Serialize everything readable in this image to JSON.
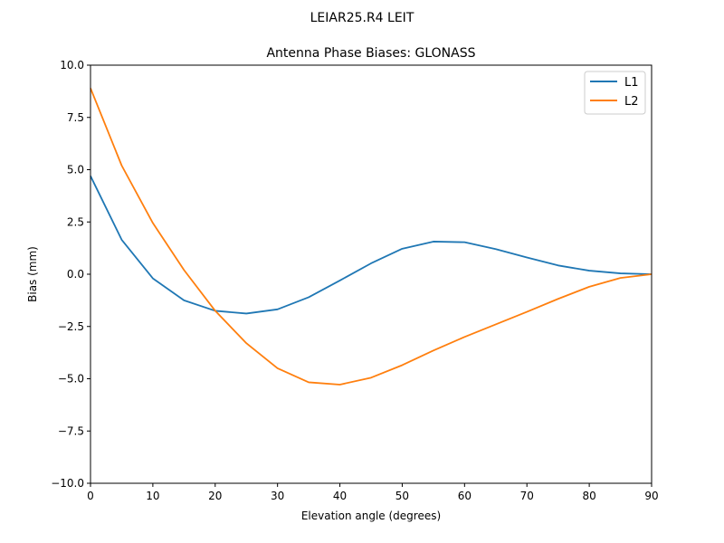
{
  "figure": {
    "suptitle": "LEIAR25.R4       LEIT"
  },
  "chart_data": {
    "type": "line",
    "title": "Antenna Phase Biases: GLONASS",
    "xlabel": "Elevation angle (degrees)",
    "ylabel": "Bias (mm)",
    "xlim": [
      0,
      90
    ],
    "ylim": [
      -10,
      10
    ],
    "xticks": [
      0,
      10,
      20,
      30,
      40,
      50,
      60,
      70,
      80,
      90
    ],
    "yticks": [
      -10.0,
      -7.5,
      -5.0,
      -2.5,
      0.0,
      2.5,
      5.0,
      7.5,
      10.0
    ],
    "ytick_labels": [
      "−10.0",
      "−7.5",
      "−5.0",
      "−2.5",
      "0.0",
      "2.5",
      "5.0",
      "7.5",
      "10.0"
    ],
    "grid": false,
    "legend_position": "top-right",
    "x": [
      0,
      5,
      10,
      15,
      20,
      25,
      30,
      35,
      40,
      45,
      50,
      55,
      60,
      65,
      70,
      75,
      80,
      85,
      90
    ],
    "series": [
      {
        "name": "L1",
        "color": "#1f77b4",
        "values": [
          4.7,
          1.65,
          -0.2,
          -1.25,
          -1.75,
          -1.88,
          -1.68,
          -1.1,
          -0.3,
          0.52,
          1.22,
          1.56,
          1.53,
          1.2,
          0.8,
          0.42,
          0.17,
          0.04,
          0.0
        ]
      },
      {
        "name": "L2",
        "color": "#ff7f0e",
        "values": [
          8.9,
          5.2,
          2.45,
          0.2,
          -1.75,
          -3.3,
          -4.5,
          -5.17,
          -5.28,
          -4.95,
          -4.35,
          -3.65,
          -3.0,
          -2.4,
          -1.8,
          -1.18,
          -0.6,
          -0.18,
          0.0
        ]
      }
    ]
  }
}
